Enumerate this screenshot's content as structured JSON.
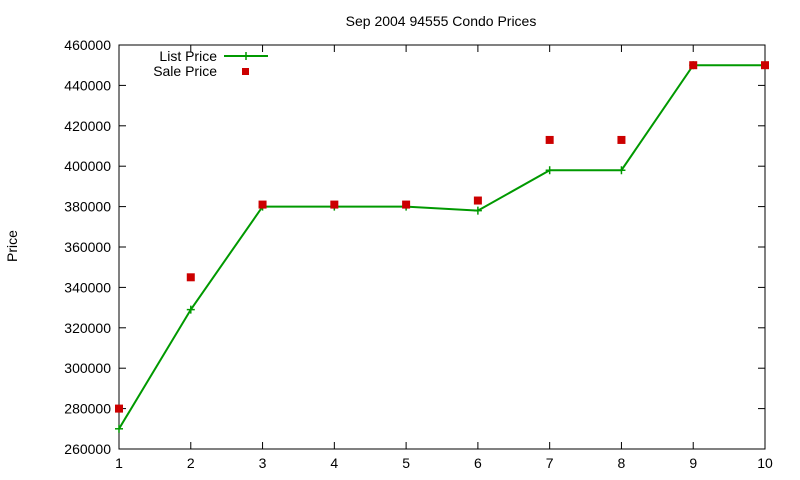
{
  "chart_data": {
    "type": "line",
    "title": "Sep 2004 94555 Condo Prices",
    "xlabel": "",
    "ylabel": "Price",
    "xlim": [
      1,
      10
    ],
    "ylim": [
      260000,
      460000
    ],
    "x_ticks": [
      "1",
      "2",
      "3",
      "4",
      "5",
      "6",
      "7",
      "8",
      "9",
      "10"
    ],
    "y_ticks": [
      "260000",
      "280000",
      "300000",
      "320000",
      "340000",
      "360000",
      "380000",
      "400000",
      "420000",
      "440000",
      "460000"
    ],
    "grid": false,
    "legend_position": "top-left",
    "series": [
      {
        "name": "List Price",
        "style": "line+cross",
        "color": "#009900",
        "x": [
          1,
          2,
          3,
          4,
          5,
          6,
          7,
          8,
          9,
          10
        ],
        "values": [
          270000,
          329000,
          380000,
          380000,
          380000,
          378000,
          398000,
          398000,
          450000,
          450000
        ]
      },
      {
        "name": "Sale Price",
        "style": "square-points",
        "color": "#cc0000",
        "x": [
          1,
          2,
          3,
          4,
          5,
          6,
          7,
          8,
          9,
          10
        ],
        "values": [
          280000,
          345000,
          381000,
          381000,
          381000,
          383000,
          413000,
          413000,
          450000,
          450000
        ]
      }
    ]
  }
}
